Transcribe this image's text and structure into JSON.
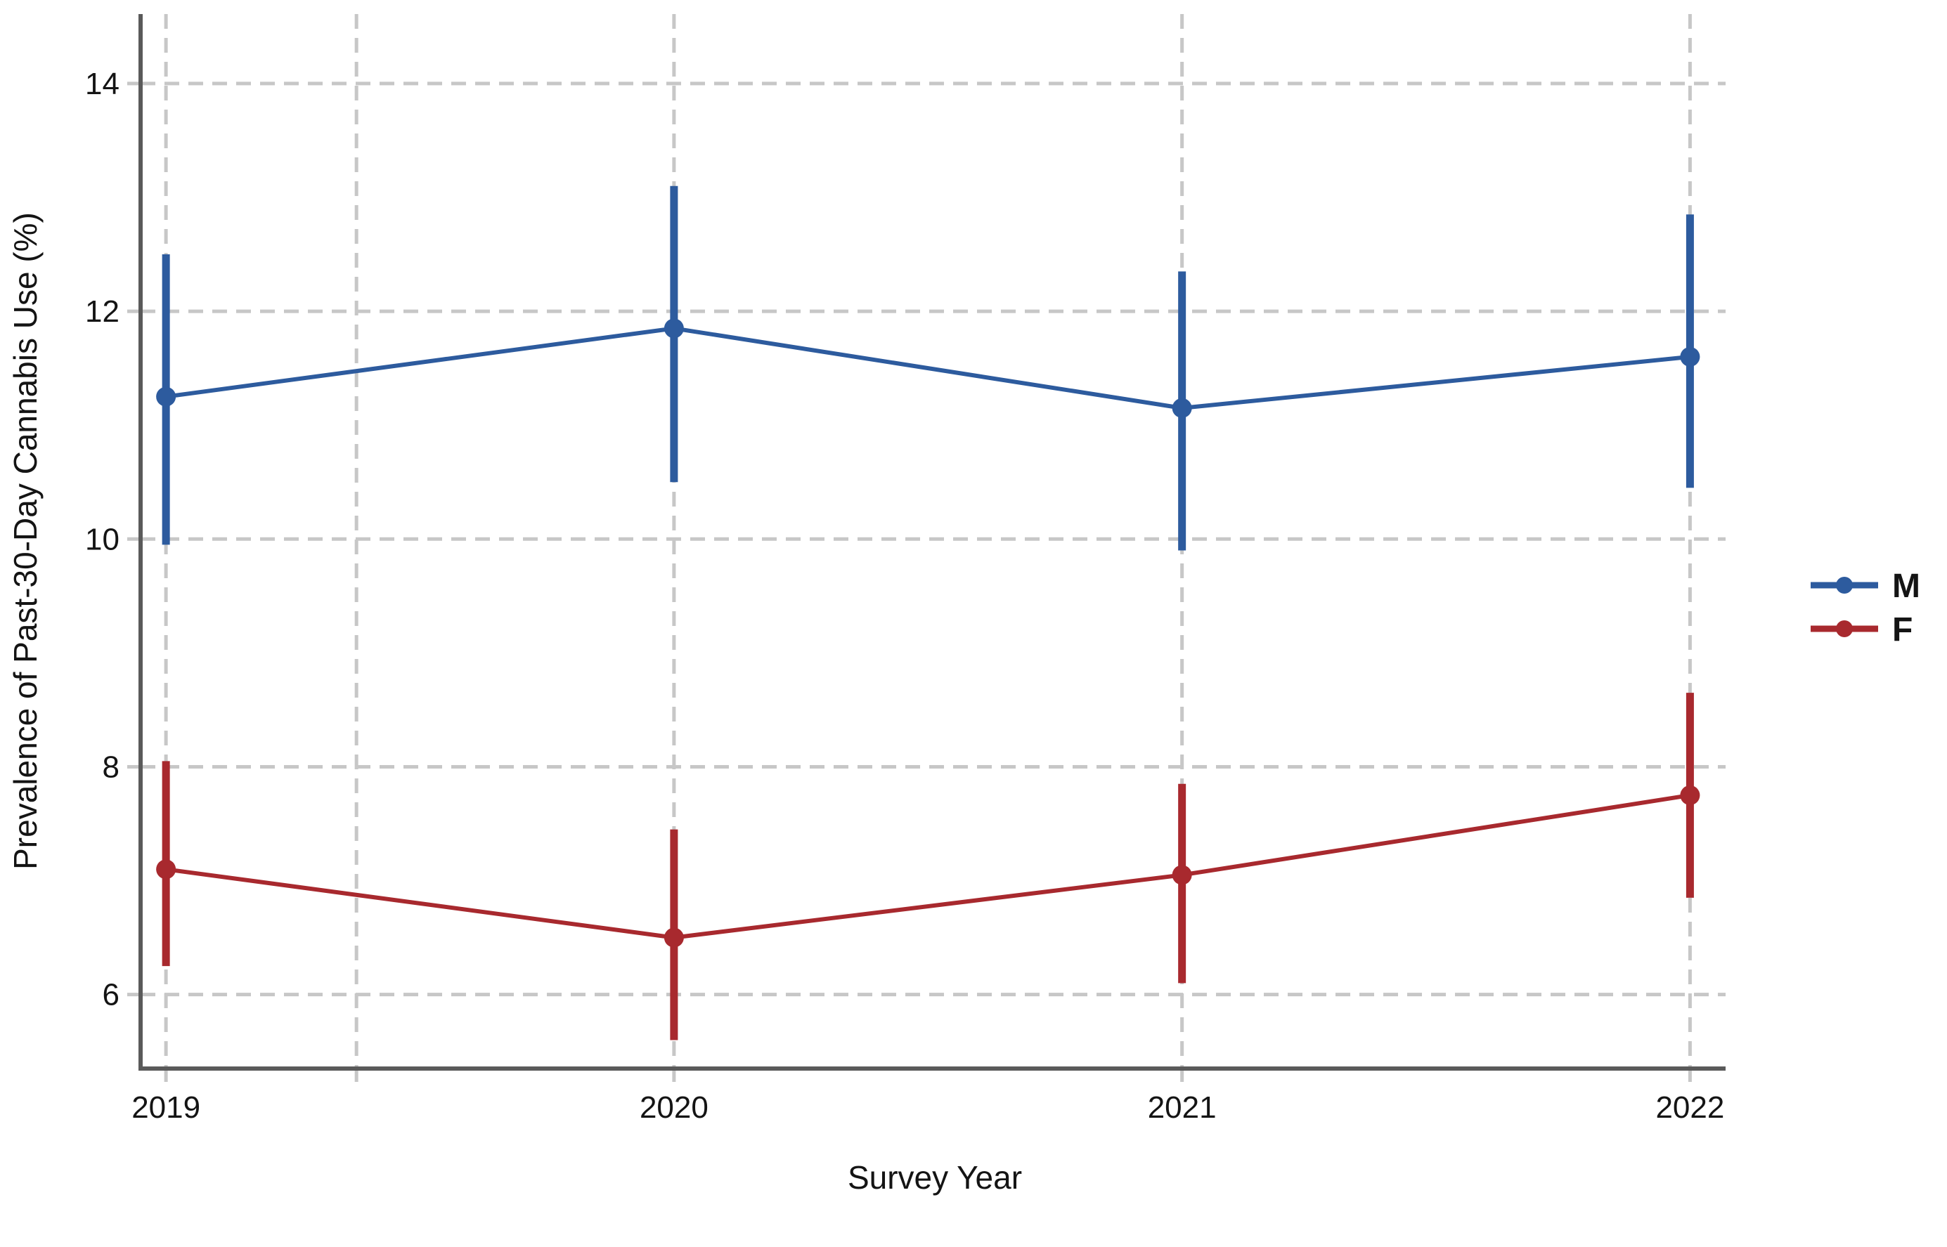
{
  "figure": {
    "background": "#ffffff"
  },
  "chart_data": {
    "type": "line",
    "title": "",
    "xlabel": "Survey Year",
    "ylabel": "Prevalence of Past-30-Day Cannabis Use (%)",
    "categories": [
      2019,
      2020,
      2021,
      2022
    ],
    "series": [
      {
        "name": "M",
        "color": "#2d5b9e",
        "values": [
          11.25,
          11.85,
          11.15,
          11.6
        ],
        "ci_low": [
          9.95,
          10.5,
          9.9,
          10.45
        ],
        "ci_high": [
          12.5,
          13.1,
          12.35,
          12.85
        ]
      },
      {
        "name": "F",
        "color": "#a8292e",
        "values": [
          7.1,
          6.5,
          7.05,
          7.75
        ],
        "ci_low": [
          6.25,
          5.6,
          6.1,
          6.85
        ],
        "ci_high": [
          8.05,
          7.45,
          7.85,
          8.65
        ]
      }
    ],
    "error_bars": true,
    "legend": {
      "position": "right-outside",
      "entries": [
        "M",
        "F"
      ]
    },
    "axes": {
      "xlim": [
        2018.95,
        2022.07
      ],
      "ylim": [
        5.35,
        14.61
      ],
      "yticks": [
        6,
        8,
        10,
        12,
        14
      ],
      "ytick_labels": [
        "6",
        "8",
        "10",
        "12",
        "14"
      ],
      "xticks": [
        {
          "x": 2019,
          "label": "2019"
        },
        {
          "x": 2019.375,
          "label": ""
        },
        {
          "x": 2020,
          "label": "2020"
        },
        {
          "x": 2021,
          "label": "2021"
        },
        {
          "x": 2022,
          "label": "2022"
        }
      ],
      "grid": true,
      "grid_style": "dashed",
      "grid_color": "#c7c7c7",
      "spine_color": "#5a5a5a",
      "tick_label_color": "#141414"
    }
  }
}
